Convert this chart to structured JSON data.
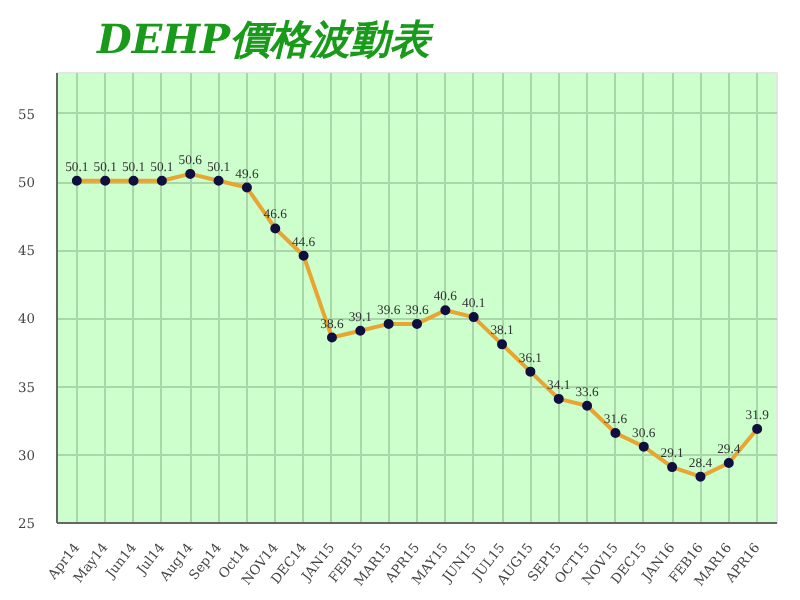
{
  "chart_data": {
    "type": "line",
    "title": "DEHP價格波動表",
    "categories": [
      "Apr14",
      "May14",
      "Jun14",
      "Jul14",
      "Aug14",
      "Sep14",
      "Oct14",
      "NOV14",
      "DEC14",
      "JAN15",
      "FEB15",
      "MAR15",
      "APR15",
      "MAY15",
      "JUN15",
      "JUL15",
      "AUG15",
      "SEP15",
      "OCT15",
      "NOV15",
      "DEC15",
      "JAN16",
      "FEB16",
      "MAR16",
      "APR16"
    ],
    "series": [
      {
        "color": "#e8a532",
        "values": [
          50.1,
          50.1,
          50.1,
          50.1,
          50.6,
          50.1,
          49.6,
          46.6,
          44.6,
          38.6,
          39.1,
          39.6,
          39.6,
          40.6,
          40.1,
          38.1,
          36.1,
          34.1,
          33.6,
          31.6,
          30.6,
          29.1,
          28.4,
          29.4,
          31.9
        ]
      }
    ],
    "ylim": [
      25,
      58
    ],
    "yticks": [
      25,
      30,
      35,
      40,
      45,
      50,
      55
    ],
    "grid": true,
    "data_labels": true,
    "marker": "circle",
    "line_style": "solid"
  }
}
